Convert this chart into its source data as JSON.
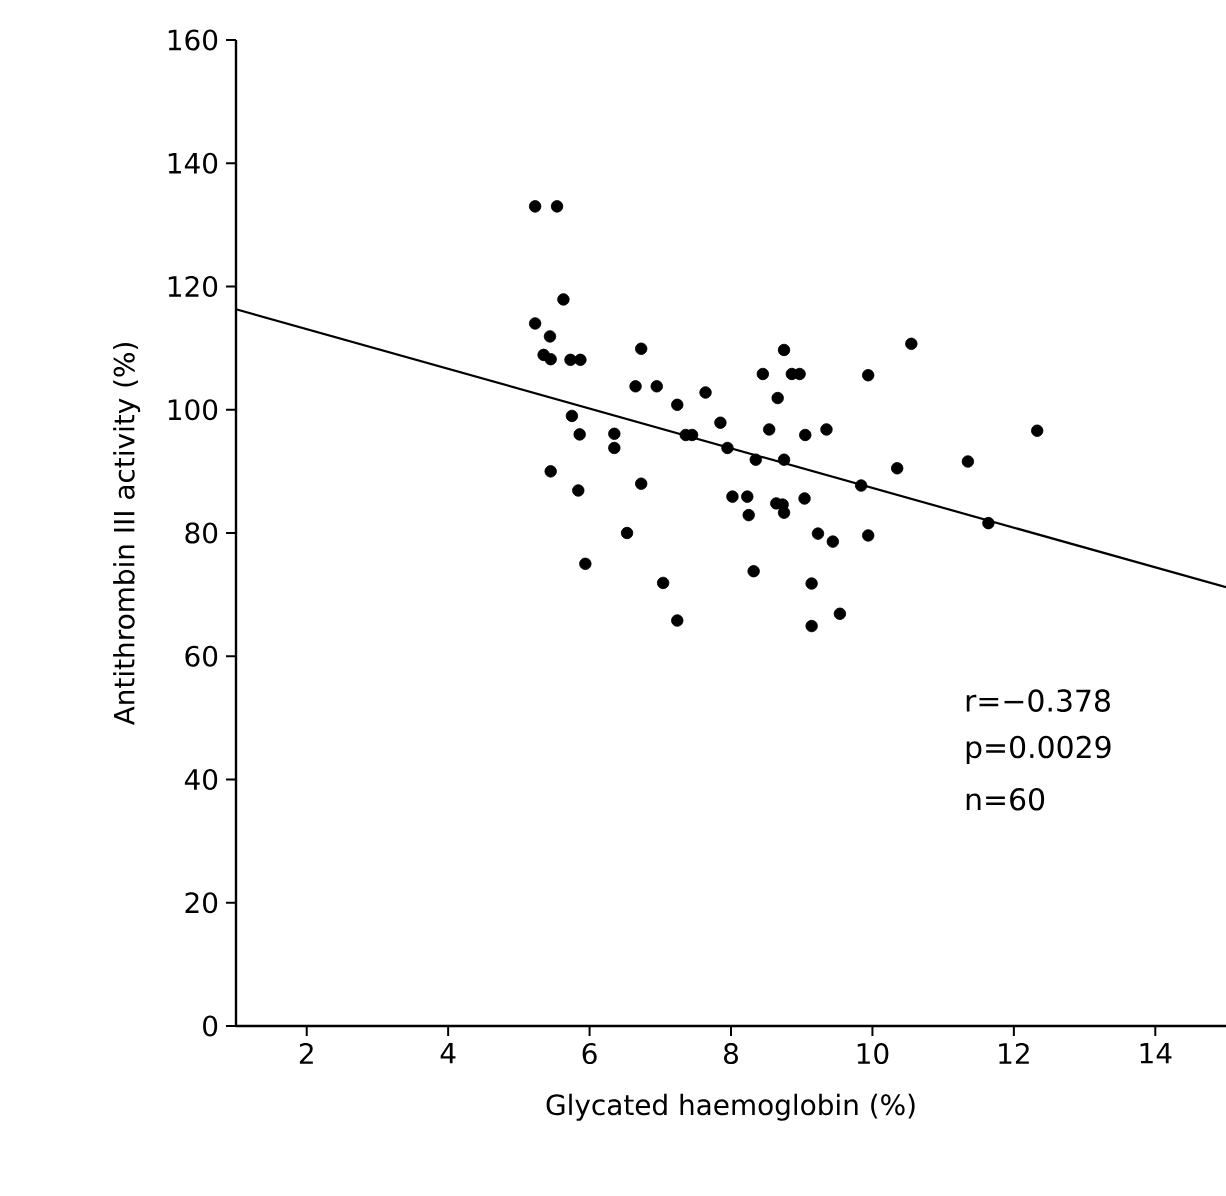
{
  "chart_data": {
    "type": "scatter",
    "xlabel": "Glycated haemoglobin (%)",
    "ylabel": "Antithrombin III activity (%)",
    "xlim": [
      1,
      15
    ],
    "ylim": [
      0,
      160
    ],
    "xticks": [
      2,
      4,
      6,
      8,
      10,
      12,
      14
    ],
    "yticks": [
      0,
      20,
      40,
      60,
      80,
      100,
      120,
      140,
      160
    ],
    "grid": false,
    "annotations": [
      "r=−0.378",
      "p=0.0029",
      "n=60"
    ],
    "series": [
      {
        "color": "#000000",
        "marker": "circle",
        "x": [
          5.23,
          5.54,
          5.63,
          5.23,
          5.44,
          5.35,
          5.45,
          5.73,
          5.87,
          6.73,
          6.65,
          6.95,
          7.24,
          7.64,
          5.75,
          5.86,
          6.35,
          6.35,
          7.36,
          7.45,
          7.85,
          7.95,
          5.45,
          5.84,
          6.73,
          8.02,
          8.23,
          8.25,
          6.53,
          5.94,
          7.04,
          7.24,
          8.32,
          8.75,
          8.45,
          8.86,
          8.97,
          9.94,
          10.55,
          8.66,
          8.54,
          9.05,
          9.35,
          12.33,
          8.35,
          8.75,
          10.35,
          11.35,
          9.84,
          8.64,
          8.73,
          8.75,
          9.04,
          9.23,
          9.44,
          9.94,
          11.64,
          9.14,
          9.54,
          9.14
        ],
        "values": [
          133.0,
          133.0,
          117.9,
          114.0,
          111.9,
          108.9,
          108.2,
          108.1,
          108.1,
          109.9,
          103.8,
          103.8,
          100.8,
          102.8,
          99.0,
          96.0,
          96.1,
          93.8,
          95.9,
          95.9,
          97.9,
          93.8,
          90.0,
          86.9,
          88.0,
          85.9,
          85.9,
          82.9,
          80.0,
          75.0,
          71.9,
          65.8,
          73.8,
          109.7,
          105.8,
          105.8,
          105.8,
          105.6,
          110.7,
          101.9,
          96.8,
          95.9,
          96.8,
          96.6,
          91.9,
          91.9,
          90.5,
          91.6,
          87.7,
          84.8,
          84.6,
          83.3,
          85.6,
          79.9,
          78.6,
          79.6,
          81.6,
          71.8,
          66.9,
          64.9
        ]
      },
      {
        "type": "line",
        "color": "#000000",
        "marker": "none",
        "line_style": "solid",
        "x": [
          1,
          15
        ],
        "values": [
          116.3,
          71.2
        ]
      }
    ]
  }
}
